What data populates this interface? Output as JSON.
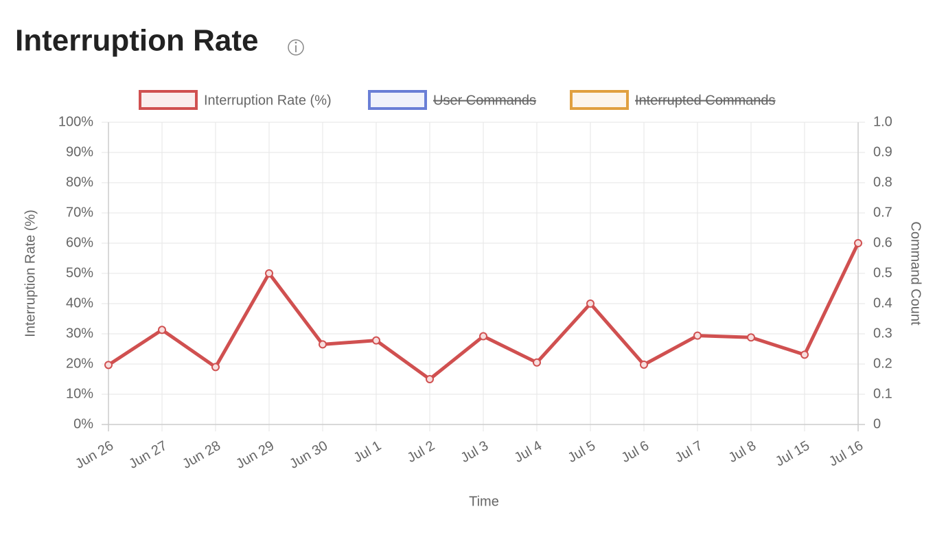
{
  "chart_data": {
    "type": "line",
    "title": "Interruption Rate",
    "x_label": "Time",
    "y_label": "Interruption Rate (%)",
    "y2_label": "Command Count",
    "categories": [
      "Jun 26",
      "Jun 27",
      "Jun 28",
      "Jun 29",
      "Jun 30",
      "Jul 1",
      "Jul 2",
      "Jul 3",
      "Jul 4",
      "Jul 5",
      "Jul 6",
      "Jul 7",
      "Jul 8",
      "Jul 15",
      "Jul 16"
    ],
    "series": [
      {
        "name": "Interruption Rate (%)",
        "color": "#d05050",
        "values": [
          19.7,
          31.3,
          19,
          50,
          26.5,
          27.8,
          15,
          29.2,
          20.5,
          40,
          19.8,
          29.4,
          28.8,
          23.1,
          60
        ]
      },
      {
        "name": "User Commands",
        "color": "#6a7fd6",
        "axis": "y2",
        "hidden": true
      },
      {
        "name": "Interrupted Commands",
        "color": "#e0a040",
        "axis": "y2",
        "hidden": true
      }
    ],
    "ylim": [
      0,
      100
    ],
    "yticks": [
      {
        "value": 0,
        "label": "0%"
      },
      {
        "value": 10,
        "label": "10%"
      },
      {
        "value": 20,
        "label": "20%"
      },
      {
        "value": 30,
        "label": "30%"
      },
      {
        "value": 40,
        "label": "40%"
      },
      {
        "value": 50,
        "label": "50%"
      },
      {
        "value": 60,
        "label": "60%"
      },
      {
        "value": 70,
        "label": "70%"
      },
      {
        "value": 80,
        "label": "80%"
      },
      {
        "value": 90,
        "label": "90%"
      },
      {
        "value": 100,
        "label": "100%"
      }
    ],
    "y2lim": [
      0,
      1
    ],
    "y2ticks": [
      0,
      0.1,
      0.2,
      0.3,
      0.4,
      0.5,
      0.6,
      0.7,
      0.8,
      0.9,
      {
        "value": 1,
        "label": "1.0"
      }
    ],
    "grid": true,
    "legend": "top"
  }
}
